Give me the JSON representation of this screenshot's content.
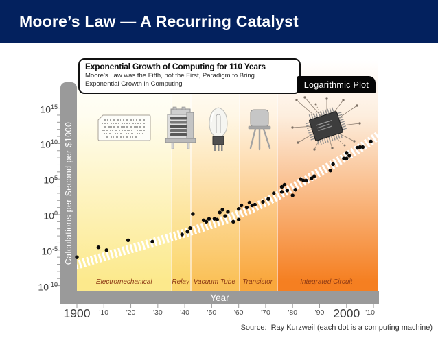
{
  "header": {
    "title": "Moore’s Law — A Recurring Catalyst"
  },
  "chart": {
    "title": "Exponential Growth of Computing for 110 Years",
    "subtitle": "Moore’s Law was the Fifth, not the First, Paradigm to Bring Exponential Growth in Computing",
    "badge": "Logarithmic Plot",
    "y_axis_title": "Calculations per Second per $1000",
    "x_axis_title": "Year",
    "source": "Source:  Ray Kurzweil (each dot is a computing machine)"
  },
  "chart_data": {
    "type": "scatter",
    "title": "Exponential Growth of Computing for 110 Years",
    "xlabel": "Year",
    "ylabel": "Calculations per Second per $1000",
    "y_scale": "log10",
    "grid": false,
    "xlim": [
      1900,
      2011
    ],
    "ylim_log10": [
      -10,
      15
    ],
    "x_ticks": [
      {
        "year": 1900,
        "label": "1900",
        "big": true
      },
      {
        "year": 1910,
        "label": "'10"
      },
      {
        "year": 1920,
        "label": "'20"
      },
      {
        "year": 1930,
        "label": "'30"
      },
      {
        "year": 1940,
        "label": "'40"
      },
      {
        "year": 1950,
        "label": "'50"
      },
      {
        "year": 1960,
        "label": "'60"
      },
      {
        "year": 1970,
        "label": "'70"
      },
      {
        "year": 1980,
        "label": "'80"
      },
      {
        "year": 1990,
        "label": "'90"
      },
      {
        "year": 2000,
        "label": "2000",
        "big": true
      },
      {
        "year": 2010,
        "label": "'10"
      }
    ],
    "y_tick_exponents": [
      15,
      10,
      5,
      0,
      -5,
      -10
    ],
    "eras": [
      {
        "label": "Electromechanical",
        "from": 1900,
        "to": 1935,
        "color": "#FCE98C",
        "tint": "#FFFDF0"
      },
      {
        "label": "Relay",
        "from": 1935,
        "to": 1942,
        "color": "#FBD56A",
        "tint": "#FFFBE9"
      },
      {
        "label": "Vacuum Tube",
        "from": 1942,
        "to": 1960,
        "color": "#FAC158",
        "tint": "#FFF7E6"
      },
      {
        "label": "Transistor",
        "from": 1960,
        "to": 1974,
        "color": "#F9A73C",
        "tint": "#FFF3E2"
      },
      {
        "label": "Integrated Circuit",
        "from": 1974,
        "to": 2011,
        "color": "#F57F21",
        "tint": "#FDEEDE"
      }
    ],
    "devices": [
      "punched-card",
      "relay",
      "vacuum-tube",
      "transistor",
      "integrated-circuit"
    ],
    "points": [
      [
        1900,
        -6.0
      ],
      [
        1908,
        -4.6
      ],
      [
        1911,
        -5.0
      ],
      [
        1919,
        -3.6
      ],
      [
        1928,
        -3.8
      ],
      [
        1939,
        -2.8
      ],
      [
        1941,
        -2.4
      ],
      [
        1942,
        -1.9
      ],
      [
        1943,
        0.1
      ],
      [
        1947,
        -0.8
      ],
      [
        1948,
        -1.0
      ],
      [
        1949,
        -0.6
      ],
      [
        1951,
        -0.6
      ],
      [
        1952,
        -0.7
      ],
      [
        1953,
        0.3
      ],
      [
        1954,
        0.7
      ],
      [
        1955,
        -0.2
      ],
      [
        1956,
        0.4
      ],
      [
        1958,
        -1.0
      ],
      [
        1960,
        -0.7
      ],
      [
        1960,
        0.8
      ],
      [
        1961,
        1.3
      ],
      [
        1963,
        1.0
      ],
      [
        1964,
        1.7
      ],
      [
        1965,
        1.3
      ],
      [
        1966,
        1.4
      ],
      [
        1969,
        1.8
      ],
      [
        1971,
        2.2
      ],
      [
        1973,
        3.0
      ],
      [
        1976,
        3.9
      ],
      [
        1976,
        3.2
      ],
      [
        1977,
        4.2
      ],
      [
        1978,
        3.4
      ],
      [
        1980,
        2.7
      ],
      [
        1981,
        3.5
      ],
      [
        1983,
        5.0
      ],
      [
        1984,
        4.8
      ],
      [
        1985,
        4.8
      ],
      [
        1987,
        5.1
      ],
      [
        1988,
        5.4
      ],
      [
        1994,
        6.2
      ],
      [
        1995,
        7.1
      ],
      [
        1999,
        7.9
      ],
      [
        2000,
        8.7
      ],
      [
        2000,
        7.9
      ],
      [
        2001,
        8.3
      ],
      [
        2004,
        9.4
      ],
      [
        2005,
        9.5
      ],
      [
        2006,
        9.5
      ],
      [
        2009,
        10.3
      ]
    ]
  }
}
